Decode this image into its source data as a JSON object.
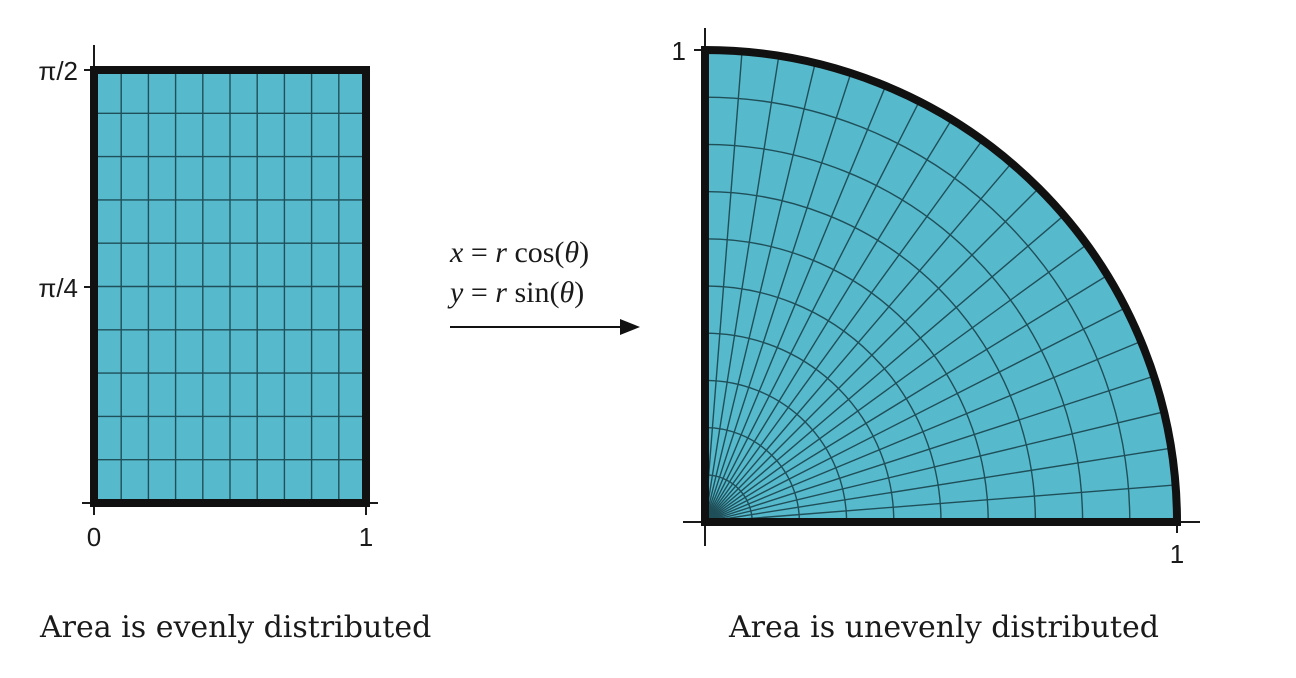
{
  "colors": {
    "fill": "#56b9cc",
    "grid": "#1f4f59",
    "border": "#111111",
    "axis": "#1a1a1a"
  },
  "left_panel": {
    "y_ticks": [
      "π/2",
      "π/4"
    ],
    "x_ticks": [
      "0",
      "1"
    ],
    "grid": {
      "columns": 10,
      "rows": 10
    },
    "caption": "Area is evenly distributed"
  },
  "right_panel": {
    "y_ticks": [
      "1"
    ],
    "x_ticks": [
      "1"
    ],
    "grid": {
      "radial_lines": 20,
      "arcs": 10
    },
    "caption": "Area is unevenly distributed"
  },
  "transform": {
    "line1": {
      "lhs": "x",
      "eq": " = ",
      "r": "r",
      "fn": " cos(",
      "theta": "θ",
      "close": ")"
    },
    "line2": {
      "lhs": "y",
      "eq": " = ",
      "r": "r",
      "fn": " sin(",
      "theta": "θ",
      "close": ")"
    },
    "arrow": "arrow-right"
  }
}
